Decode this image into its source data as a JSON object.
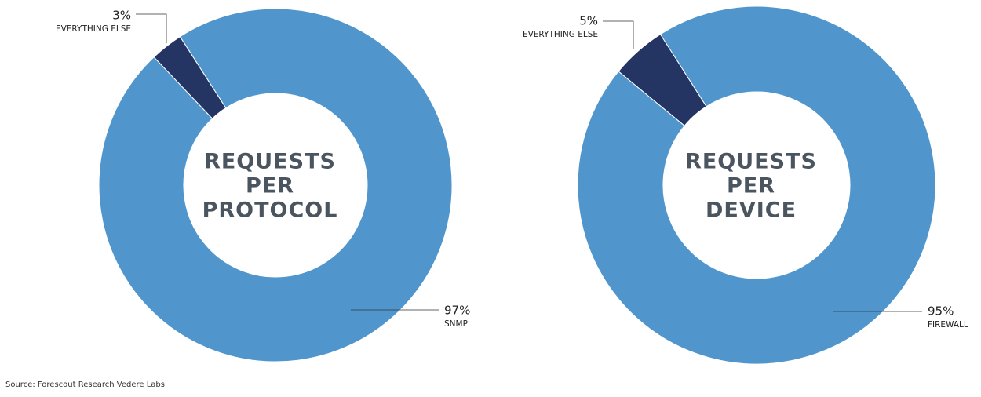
{
  "chart_data": [
    {
      "type": "pie",
      "title": "REQUESTS PER PROTOCOL",
      "donut": true,
      "categories": [
        "EVERYTHING ELSE",
        "SNMP"
      ],
      "values": [
        3,
        97
      ],
      "value_labels": [
        "3%",
        "97%"
      ],
      "colors": [
        "#243563",
        "#5096cd"
      ]
    },
    {
      "type": "pie",
      "title": "REQUESTS PER DEVICE",
      "donut": true,
      "categories": [
        "EVERYTHING ELSE",
        "FIREWALL"
      ],
      "values": [
        5,
        95
      ],
      "value_labels": [
        "5%",
        "95%"
      ],
      "colors": [
        "#243563",
        "#5096cd"
      ]
    }
  ],
  "source": "Source: Forescout Research Vedere Labs"
}
